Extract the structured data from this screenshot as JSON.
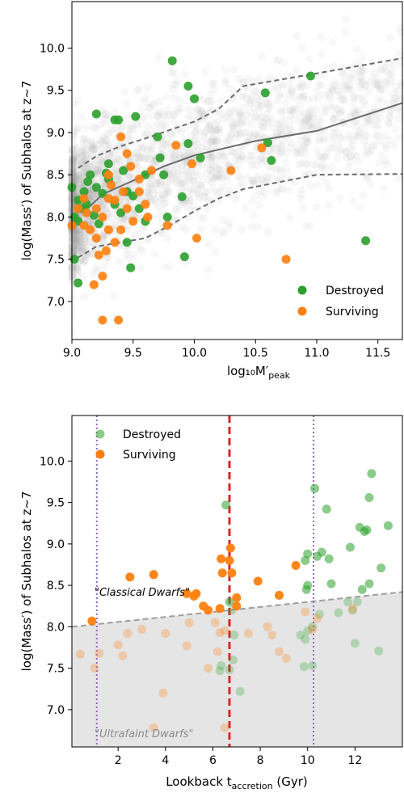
{
  "chart_data": [
    {
      "type": "scatter",
      "xlabel": "log₁₀M′",
      "xlabel_sub": "peak",
      "ylabel": "log(Mass′) of Subhalos at z~7",
      "xlim": [
        9.0,
        11.7
      ],
      "ylim": [
        6.55,
        10.55
      ],
      "xticks": [
        "9.0",
        "9.5",
        "10.0",
        "10.5",
        "11.0",
        "11.5"
      ],
      "yticks": [
        "7.0",
        "7.5",
        "8.0",
        "8.5",
        "9.0",
        "9.5",
        "10.0"
      ],
      "legend_position": "lower-right",
      "colors": {
        "destroyed": "#2ca02c",
        "surviving": "#ff7f0e",
        "background": "#9a9a9a",
        "lines": "#6b6b6b"
      },
      "series": [
        {
          "name": "Destroyed",
          "color": "#2ca02c",
          "points": [
            [
              9.82,
              9.85
            ],
            [
              9.95,
              9.55
            ],
            [
              10.0,
              9.4
            ],
            [
              10.95,
              9.67
            ],
            [
              10.58,
              9.47
            ],
            [
              9.2,
              9.22
            ],
            [
              9.35,
              9.15
            ],
            [
              9.38,
              9.15
            ],
            [
              9.52,
              9.19
            ],
            [
              9.7,
              8.95
            ],
            [
              9.95,
              8.87
            ],
            [
              10.05,
              8.7
            ],
            [
              9.72,
              8.7
            ],
            [
              9.75,
              8.5
            ],
            [
              9.3,
              8.63
            ],
            [
              9.6,
              8.5
            ],
            [
              9.15,
              8.5
            ],
            [
              9.2,
              8.35
            ],
            [
              9.0,
              8.35
            ],
            [
              9.05,
              8.2
            ],
            [
              9.1,
              8.3
            ],
            [
              9.12,
              8.15
            ],
            [
              9.25,
              8.28
            ],
            [
              9.3,
              8.45
            ],
            [
              9.42,
              8.55
            ],
            [
              9.45,
              8.3
            ],
            [
              9.5,
              8.25
            ],
            [
              9.35,
              8.15
            ],
            [
              9.4,
              8.05
            ],
            [
              9.55,
              8.1
            ],
            [
              9.18,
              8.02
            ],
            [
              9.22,
              7.92
            ],
            [
              9.02,
              8.0
            ],
            [
              9.05,
              7.95
            ],
            [
              9.45,
              7.7
            ],
            [
              9.48,
              7.4
            ],
            [
              9.02,
              7.5
            ],
            [
              9.05,
              7.22
            ],
            [
              9.78,
              8.0
            ],
            [
              9.9,
              8.24
            ],
            [
              9.92,
              7.53
            ],
            [
              10.6,
              8.88
            ],
            [
              10.63,
              8.67
            ],
            [
              11.4,
              7.72
            ],
            [
              9.6,
              7.95
            ],
            [
              9.08,
              8.1
            ],
            [
              9.28,
              8.52
            ],
            [
              9.13,
              8.42
            ]
          ]
        },
        {
          "name": "Surviving",
          "color": "#ff7f0e",
          "points": [
            [
              9.4,
              8.95
            ],
            [
              9.3,
              8.5
            ],
            [
              9.35,
              8.2
            ],
            [
              9.42,
              8.3
            ],
            [
              9.55,
              8.3
            ],
            [
              9.6,
              8.15
            ],
            [
              9.2,
              8.1
            ],
            [
              9.25,
              8.0
            ],
            [
              9.1,
              8.22
            ],
            [
              9.1,
              7.9
            ],
            [
              9.15,
              7.85
            ],
            [
              9.2,
              7.75
            ],
            [
              9.0,
              7.9
            ],
            [
              9.05,
              8.1
            ],
            [
              9.3,
              7.85
            ],
            [
              9.4,
              7.85
            ],
            [
              9.5,
              7.95
            ],
            [
              9.28,
              7.6
            ],
            [
              9.35,
              7.7
            ],
            [
              9.22,
              7.55
            ],
            [
              9.25,
              7.3
            ],
            [
              9.18,
              7.2
            ],
            [
              9.25,
              6.78
            ],
            [
              9.38,
              6.78
            ],
            [
              9.45,
              8.75
            ],
            [
              9.48,
              8.6
            ],
            [
              9.62,
              8.0
            ],
            [
              9.85,
              8.85
            ],
            [
              9.65,
              8.55
            ],
            [
              9.78,
              7.9
            ],
            [
              9.98,
              8.63
            ],
            [
              10.02,
              7.75
            ],
            [
              10.3,
              8.55
            ],
            [
              10.55,
              8.82
            ],
            [
              10.75,
              7.5
            ],
            [
              9.55,
              8.45
            ],
            [
              9.32,
              8.38
            ],
            [
              9.45,
              8.1
            ],
            [
              9.12,
              8.05
            ],
            [
              9.3,
              8.22
            ]
          ]
        }
      ],
      "median_line": {
        "x": [
          9.05,
          9.15,
          9.25,
          9.5,
          9.75,
          10.0,
          10.5,
          11.0,
          11.7
        ],
        "y": [
          8.05,
          8.13,
          8.27,
          8.43,
          8.6,
          8.73,
          8.9,
          9.02,
          9.35
        ]
      },
      "upper_band": {
        "x": [
          9.05,
          9.2,
          9.4,
          9.6,
          9.8,
          10.0,
          10.2,
          10.4,
          11.0,
          11.7
        ],
        "y": [
          8.58,
          8.72,
          8.84,
          8.93,
          9.03,
          9.13,
          9.28,
          9.55,
          9.7,
          9.88
        ]
      },
      "lower_band": {
        "x": [
          9.05,
          9.2,
          9.4,
          9.6,
          9.8,
          10.0,
          10.2,
          10.4,
          11.0,
          11.7
        ],
        "y": [
          7.52,
          7.65,
          7.7,
          7.75,
          7.9,
          8.07,
          8.22,
          8.33,
          8.5,
          8.51
        ]
      },
      "legend": {
        "destroyed": "Destroyed",
        "surviving": "Surviving"
      }
    },
    {
      "type": "scatter",
      "xlabel": "Lookback t",
      "xlabel_sub": "accretion",
      "xlabel_suffix": " (Gyr)",
      "ylabel": "log(Mass′) of Subhalos at z~7",
      "xlim": [
        0.05,
        14.0
      ],
      "ylim": [
        6.55,
        10.55
      ],
      "xticks": [
        "2",
        "4",
        "6",
        "8",
        "10",
        "12"
      ],
      "yticks": [
        "7.0",
        "7.5",
        "8.0",
        "8.5",
        "9.0",
        "9.5",
        "10.0"
      ],
      "legend_position": "upper-left",
      "colors": {
        "destroyed": "#2ca02c",
        "surviving": "#ff7f0e",
        "shade": "#e5e5e5",
        "threshold": "#9e9e9e",
        "vline_red": "#d62728",
        "vline_purple": "#9467bd"
      },
      "threshold_line": {
        "x": [
          0.05,
          14.0
        ],
        "y": [
          8.0,
          8.42
        ]
      },
      "vline_red": 6.7,
      "vlines_purple": [
        1.1,
        10.25
      ],
      "annotation_classical": "\"Classical Dwarfs\"",
      "annotation_ultrafaint": "\"Ultrafaint Dwarfs\"",
      "series": [
        {
          "name": "Destroyed",
          "color": "#2ca02c",
          "points": [
            [
              12.7,
              9.85
            ],
            [
              10.3,
              9.67
            ],
            [
              6.55,
              9.47
            ],
            [
              12.6,
              9.56
            ],
            [
              10.8,
              9.42
            ],
            [
              13.4,
              9.22
            ],
            [
              12.2,
              9.2
            ],
            [
              12.5,
              9.17
            ],
            [
              12.4,
              9.15
            ],
            [
              11.8,
              8.96
            ],
            [
              10.0,
              8.88
            ],
            [
              10.4,
              8.85
            ],
            [
              9.9,
              8.8
            ],
            [
              10.9,
              8.82
            ],
            [
              13.1,
              8.71
            ],
            [
              10.0,
              8.5
            ],
            [
              9.95,
              8.45
            ],
            [
              11.0,
              8.52
            ],
            [
              12.3,
              8.45
            ],
            [
              12.6,
              8.52
            ],
            [
              12.1,
              8.3
            ],
            [
              11.3,
              8.17
            ],
            [
              11.7,
              8.3
            ],
            [
              11.9,
              8.2
            ],
            [
              10.5,
              8.15
            ],
            [
              10.2,
              8.0
            ],
            [
              10.0,
              7.95
            ],
            [
              9.9,
              7.85
            ],
            [
              9.85,
              7.52
            ],
            [
              10.2,
              7.53
            ],
            [
              13.0,
              7.71
            ],
            [
              6.7,
              8.3
            ],
            [
              6.8,
              8.2
            ],
            [
              6.9,
              7.9
            ],
            [
              6.85,
              7.6
            ],
            [
              6.7,
              7.48
            ],
            [
              7.15,
              7.22
            ],
            [
              6.35,
              7.53
            ],
            [
              6.3,
              7.47
            ],
            [
              12.0,
              7.8
            ],
            [
              9.7,
              7.9
            ],
            [
              10.6,
              8.9
            ]
          ]
        },
        {
          "name": "Surviving",
          "color": "#ff7f0e",
          "points": [
            [
              0.9,
              8.07
            ],
            [
              2.5,
              8.6
            ],
            [
              3.5,
              8.63
            ],
            [
              4.9,
              8.4
            ],
            [
              5.3,
              8.4
            ],
            [
              5.2,
              8.37
            ],
            [
              5.6,
              8.25
            ],
            [
              5.8,
              8.2
            ],
            [
              6.3,
              8.22
            ],
            [
              6.35,
              8.82
            ],
            [
              6.4,
              8.65
            ],
            [
              6.75,
              8.95
            ],
            [
              6.7,
              8.8
            ],
            [
              6.8,
              8.65
            ],
            [
              7.0,
              8.35
            ],
            [
              7.9,
              8.55
            ],
            [
              8.8,
              8.38
            ],
            [
              9.5,
              8.74
            ],
            [
              0.4,
              7.67
            ],
            [
              1.0,
              7.5
            ],
            [
              1.2,
              7.68
            ],
            [
              2.0,
              7.78
            ],
            [
              2.2,
              7.65
            ],
            [
              2.4,
              7.92
            ],
            [
              3.0,
              7.97
            ],
            [
              3.9,
              7.2
            ],
            [
              3.5,
              6.78
            ],
            [
              4.0,
              7.92
            ],
            [
              4.9,
              7.77
            ],
            [
              5.0,
              8.05
            ],
            [
              6.1,
              8.05
            ],
            [
              6.3,
              7.93
            ],
            [
              6.5,
              7.95
            ],
            [
              6.5,
              6.78
            ],
            [
              7.0,
              8.25
            ],
            [
              7.5,
              7.92
            ],
            [
              8.3,
              8.0
            ],
            [
              8.5,
              7.9
            ],
            [
              8.8,
              7.7
            ],
            [
              9.1,
              7.62
            ],
            [
              9.9,
              8.18
            ],
            [
              10.2,
              7.97
            ],
            [
              11.9,
              8.22
            ],
            [
              10.4,
              8.1
            ],
            [
              6.2,
              7.7
            ],
            [
              5.8,
              7.5
            ]
          ]
        }
      ],
      "legend": {
        "destroyed": "Destroyed",
        "surviving": "Surviving"
      }
    }
  ]
}
